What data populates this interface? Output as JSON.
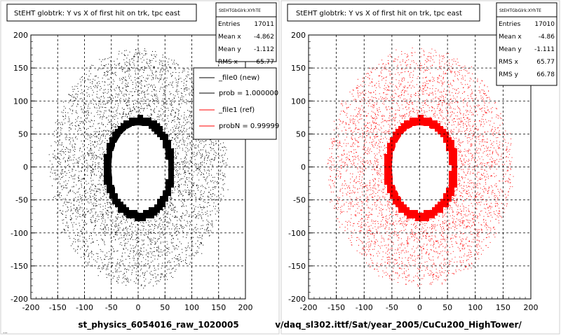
{
  "panels": [
    {
      "title": "StEHT globtrk: Y vs X of first hit on trk, tpc east",
      "stats": {
        "header": "StEHTGbGlrk:XYhTE",
        "rows": [
          {
            "label": "Entries",
            "value": "17011"
          },
          {
            "label": "Mean x",
            "value": "-4.862"
          },
          {
            "label": "Mean y",
            "value": "-1.112"
          },
          {
            "label": "RMS x",
            "value": "65.77"
          }
        ]
      },
      "legend": [
        {
          "label": "_file0 (new)",
          "color": "#000000"
        },
        {
          "label": "prob = 1.000000",
          "color": "#000000"
        },
        {
          "label": "_file1 (ref)",
          "color": "#ff0000"
        },
        {
          "label": "probN = 0.99999",
          "color": "#ff0000"
        }
      ],
      "xlabel": "st_physics_6054016_raw_1020005",
      "marker_color": "#000000"
    },
    {
      "title": "StEHT globtrk: Y vs X of first hit on trk, tpc east",
      "stats": {
        "header": "StEHTGbGlrk:XYhTE",
        "rows": [
          {
            "label": "Entries",
            "value": "17010"
          },
          {
            "label": "Mean x",
            "value": "-4.86"
          },
          {
            "label": "Mean y",
            "value": "-1.111"
          },
          {
            "label": "RMS x",
            "value": "65.77"
          },
          {
            "label": "RMS y",
            "value": "66.78"
          }
        ]
      },
      "xlabel": "v/daq_sl302.ittf/Sat/year_2005/CuCu200_HighTower/",
      "marker_color": "#ff0000"
    }
  ],
  "footer_text": "...",
  "chart_data": [
    {
      "type": "scatter",
      "title": "StEHT globtrk: Y vs X of first hit on trk, tpc east",
      "xlim": [
        -200,
        200
      ],
      "ylim": [
        -200,
        200
      ],
      "xticks": [
        -200,
        -150,
        -100,
        -50,
        0,
        50,
        100,
        150,
        200
      ],
      "yticks": [
        -200,
        -150,
        -100,
        -50,
        0,
        50,
        100,
        150,
        200
      ],
      "grid": true,
      "series": [
        {
          "name": "_file0 (new)",
          "entries": 17011,
          "mean_x": -4.862,
          "mean_y": -1.112,
          "rms_x": 65.77
        }
      ],
      "hole_ring": {
        "center": [
          0,
          0
        ],
        "inner_radii": [
          50,
          65
        ],
        "outer_radii": [
          60,
          75
        ]
      }
    },
    {
      "type": "scatter",
      "title": "StEHT globtrk: Y vs X of first hit on trk, tpc east",
      "xlim": [
        -200,
        200
      ],
      "ylim": [
        -200,
        200
      ],
      "xticks": [
        -200,
        -150,
        -100,
        -50,
        0,
        50,
        100,
        150,
        200
      ],
      "yticks": [
        -200,
        -150,
        -100,
        -50,
        0,
        50,
        100,
        150,
        200
      ],
      "grid": true,
      "series": [
        {
          "name": "_file1 (ref)",
          "entries": 17010,
          "mean_x": -4.86,
          "mean_y": -1.111,
          "rms_x": 65.77,
          "rms_y": 66.78
        }
      ],
      "hole_ring": {
        "center": [
          0,
          0
        ],
        "inner_radii": [
          50,
          65
        ],
        "outer_radii": [
          60,
          75
        ]
      }
    }
  ]
}
